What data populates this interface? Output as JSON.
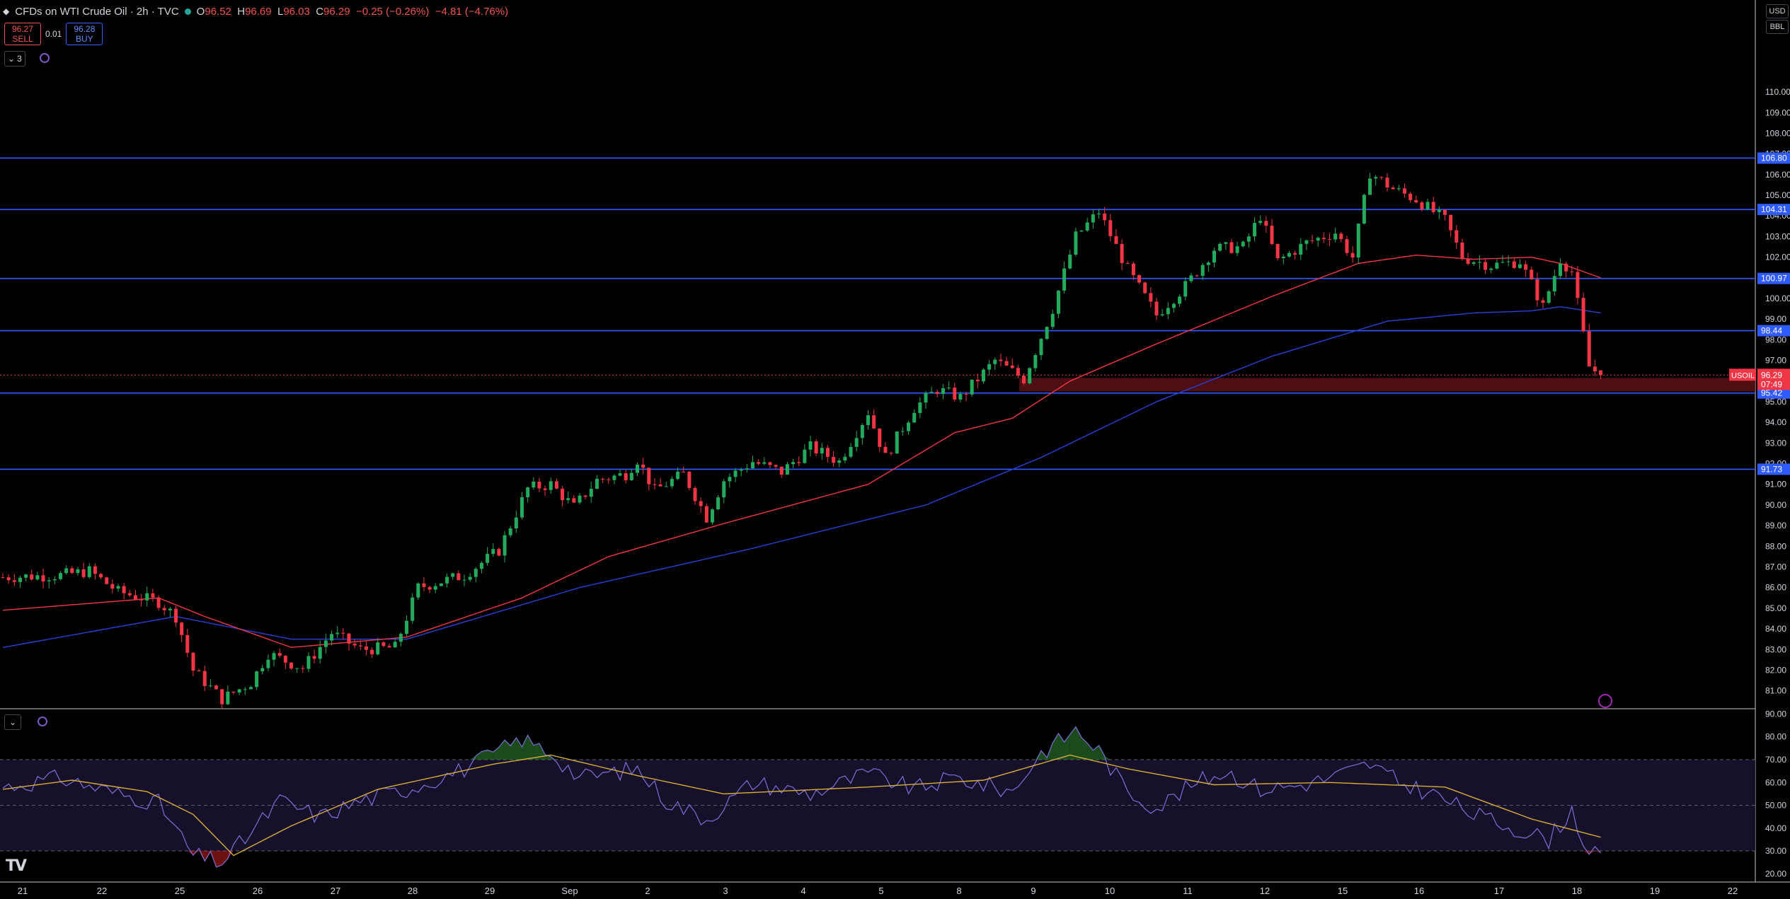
{
  "header": {
    "symbol_title": "CFDs on WTI Crude Oil · 2h · TVC",
    "ohlc": {
      "open_label": "O",
      "open": "96.52",
      "high_label": "H",
      "high": "96.69",
      "low_label": "L",
      "low": "96.03",
      "close_label": "C",
      "close": "96.29",
      "change": "−0.25 (−0.26%)",
      "change_2": "−4.81 (−4.76%)"
    }
  },
  "trade": {
    "sell_price": "96.27",
    "sell_label": "SELL",
    "spread": "0.01",
    "buy_price": "96.28",
    "buy_label": "BUY"
  },
  "indicators_toggle": "3",
  "units": {
    "currency": "USD",
    "unit": "BBL"
  },
  "colors": {
    "up": "#26a69a",
    "candle_up": "#22ab5c",
    "candle_down": "#f23645",
    "ema_fast": "#f23645",
    "ema_slow": "#2a40d8",
    "hline": "#2f5bff",
    "rsi": "#7e6fd6",
    "rsi_ma": "#d4af37",
    "zone": "#5a1218"
  },
  "price_axis": {
    "ticks": [
      "110.00",
      "109.00",
      "108.00",
      "107.00",
      "106.00",
      "105.00",
      "104.00",
      "103.00",
      "102.00",
      "101.00",
      "100.00",
      "99.00",
      "98.00",
      "97.00",
      "96.00",
      "95.00",
      "94.00",
      "93.00",
      "92.00",
      "91.00",
      "90.00",
      "89.00",
      "88.00",
      "87.00",
      "86.00",
      "85.00",
      "84.00",
      "83.00",
      "82.00",
      "81.00"
    ],
    "ymin": 80.2,
    "ymax": 112.4
  },
  "horizontal_levels": [
    "106.80",
    "104.31",
    "100.97",
    "98.44",
    "95.42",
    "91.73"
  ],
  "last_price": {
    "symbol": "USOIL",
    "price": "96.29",
    "countdown": "07:49"
  },
  "rsi_axis": {
    "ticks": [
      "90.00",
      "80.00",
      "70.00",
      "60.00",
      "50.00",
      "40.00",
      "30.00",
      "20.00"
    ],
    "upper": 70,
    "middle": 50,
    "lower": 30,
    "ymin": 17,
    "ymax": 92
  },
  "time_axis": [
    "21",
    "22",
    "25",
    "26",
    "27",
    "28",
    "29",
    "Sep",
    "2",
    "3",
    "4",
    "5",
    "8",
    "9",
    "10",
    "11",
    "12",
    "15",
    "16",
    "17",
    "18",
    "19",
    "22"
  ],
  "chart_data": {
    "type": "candlestick",
    "symbol": "USOIL",
    "interval": "2h",
    "candle_anchors": [
      {
        "bar": 0,
        "c": 86.5
      },
      {
        "bar": 10,
        "c": 86.6
      },
      {
        "bar": 15,
        "c": 86.8
      },
      {
        "bar": 20,
        "c": 85.8
      },
      {
        "bar": 27,
        "c": 85.3
      },
      {
        "bar": 30,
        "c": 84.6
      },
      {
        "bar": 33,
        "c": 82.0
      },
      {
        "bar": 38,
        "c": 80.6
      },
      {
        "bar": 43,
        "c": 81.4
      },
      {
        "bar": 46,
        "c": 82.8
      },
      {
        "bar": 52,
        "c": 82.1
      },
      {
        "bar": 57,
        "c": 83.8
      },
      {
        "bar": 62,
        "c": 83.0
      },
      {
        "bar": 68,
        "c": 83.1
      },
      {
        "bar": 72,
        "c": 86.0
      },
      {
        "bar": 80,
        "c": 86.6
      },
      {
        "bar": 86,
        "c": 87.8
      },
      {
        "bar": 91,
        "c": 90.8
      },
      {
        "bar": 95,
        "c": 91.0
      },
      {
        "bar": 99,
        "c": 89.9
      },
      {
        "bar": 103,
        "c": 91.2
      },
      {
        "bar": 108,
        "c": 91.5
      },
      {
        "bar": 110,
        "c": 92.2
      },
      {
        "bar": 113,
        "c": 90.7
      },
      {
        "bar": 118,
        "c": 91.5
      },
      {
        "bar": 122,
        "c": 89.4
      },
      {
        "bar": 125,
        "c": 91.2
      },
      {
        "bar": 130,
        "c": 92.1
      },
      {
        "bar": 135,
        "c": 91.6
      },
      {
        "bar": 140,
        "c": 92.8
      },
      {
        "bar": 145,
        "c": 92.1
      },
      {
        "bar": 150,
        "c": 94.5
      },
      {
        "bar": 153,
        "c": 92.3
      },
      {
        "bar": 158,
        "c": 94.7
      },
      {
        "bar": 162,
        "c": 95.6
      },
      {
        "bar": 166,
        "c": 95.2
      },
      {
        "bar": 172,
        "c": 97.0
      },
      {
        "bar": 177,
        "c": 96.1
      },
      {
        "bar": 182,
        "c": 99.5
      },
      {
        "bar": 186,
        "c": 103.0
      },
      {
        "bar": 190,
        "c": 104.2
      },
      {
        "bar": 195,
        "c": 101.4
      },
      {
        "bar": 200,
        "c": 99.2
      },
      {
        "bar": 205,
        "c": 100.6
      },
      {
        "bar": 210,
        "c": 102.4
      },
      {
        "bar": 215,
        "c": 102.5
      },
      {
        "bar": 218,
        "c": 104.0
      },
      {
        "bar": 221,
        "c": 101.8
      },
      {
        "bar": 226,
        "c": 102.7
      },
      {
        "bar": 231,
        "c": 103.2
      },
      {
        "bar": 234,
        "c": 102.0
      },
      {
        "bar": 237,
        "c": 106.1
      },
      {
        "bar": 241,
        "c": 105.3
      },
      {
        "bar": 245,
        "c": 104.8
      },
      {
        "bar": 250,
        "c": 103.8
      },
      {
        "bar": 253,
        "c": 102.0
      },
      {
        "bar": 258,
        "c": 101.6
      },
      {
        "bar": 263,
        "c": 101.8
      },
      {
        "bar": 267,
        "c": 99.6
      },
      {
        "bar": 270,
        "c": 101.9
      },
      {
        "bar": 272,
        "c": 101.3
      },
      {
        "bar": 275,
        "c": 96.7
      },
      {
        "bar": 277,
        "c": 96.29
      }
    ],
    "ema_fast_anchors": [
      {
        "bar": 0,
        "v": 84.9
      },
      {
        "bar": 27,
        "v": 85.5
      },
      {
        "bar": 35,
        "v": 84.6
      },
      {
        "bar": 50,
        "v": 83.1
      },
      {
        "bar": 70,
        "v": 83.6
      },
      {
        "bar": 90,
        "v": 85.5
      },
      {
        "bar": 105,
        "v": 87.5
      },
      {
        "bar": 125,
        "v": 89.1
      },
      {
        "bar": 150,
        "v": 91.0
      },
      {
        "bar": 165,
        "v": 93.5
      },
      {
        "bar": 175,
        "v": 94.2
      },
      {
        "bar": 185,
        "v": 96.0
      },
      {
        "bar": 200,
        "v": 97.8
      },
      {
        "bar": 220,
        "v": 100.1
      },
      {
        "bar": 235,
        "v": 101.7
      },
      {
        "bar": 245,
        "v": 102.1
      },
      {
        "bar": 255,
        "v": 101.9
      },
      {
        "bar": 265,
        "v": 102.0
      },
      {
        "bar": 270,
        "v": 101.7
      },
      {
        "bar": 277,
        "v": 101.0
      }
    ],
    "ema_slow_anchors": [
      {
        "bar": 0,
        "v": 83.1
      },
      {
        "bar": 30,
        "v": 84.6
      },
      {
        "bar": 50,
        "v": 83.5
      },
      {
        "bar": 70,
        "v": 83.5
      },
      {
        "bar": 100,
        "v": 86.0
      },
      {
        "bar": 130,
        "v": 87.9
      },
      {
        "bar": 160,
        "v": 90.0
      },
      {
        "bar": 180,
        "v": 92.3
      },
      {
        "bar": 200,
        "v": 95.0
      },
      {
        "bar": 220,
        "v": 97.2
      },
      {
        "bar": 240,
        "v": 98.9
      },
      {
        "bar": 255,
        "v": 99.3
      },
      {
        "bar": 265,
        "v": 99.4
      },
      {
        "bar": 270,
        "v": 99.6
      },
      {
        "bar": 277,
        "v": 99.3
      }
    ],
    "rsi_anchors": [
      {
        "bar": 0,
        "v": 58
      },
      {
        "bar": 10,
        "v": 62
      },
      {
        "bar": 20,
        "v": 55
      },
      {
        "bar": 27,
        "v": 51
      },
      {
        "bar": 33,
        "v": 28
      },
      {
        "bar": 38,
        "v": 25
      },
      {
        "bar": 43,
        "v": 38
      },
      {
        "bar": 48,
        "v": 52
      },
      {
        "bar": 55,
        "v": 45
      },
      {
        "bar": 62,
        "v": 52
      },
      {
        "bar": 70,
        "v": 57
      },
      {
        "bar": 80,
        "v": 66
      },
      {
        "bar": 90,
        "v": 79
      },
      {
        "bar": 95,
        "v": 73
      },
      {
        "bar": 100,
        "v": 62
      },
      {
        "bar": 110,
        "v": 66
      },
      {
        "bar": 115,
        "v": 52
      },
      {
        "bar": 122,
        "v": 44
      },
      {
        "bar": 130,
        "v": 60
      },
      {
        "bar": 140,
        "v": 55
      },
      {
        "bar": 150,
        "v": 64
      },
      {
        "bar": 158,
        "v": 57
      },
      {
        "bar": 165,
        "v": 62
      },
      {
        "bar": 175,
        "v": 56
      },
      {
        "bar": 180,
        "v": 73
      },
      {
        "bar": 186,
        "v": 83
      },
      {
        "bar": 190,
        "v": 74
      },
      {
        "bar": 195,
        "v": 56
      },
      {
        "bar": 200,
        "v": 49
      },
      {
        "bar": 207,
        "v": 60
      },
      {
        "bar": 212,
        "v": 65
      },
      {
        "bar": 218,
        "v": 57
      },
      {
        "bar": 225,
        "v": 59
      },
      {
        "bar": 230,
        "v": 62
      },
      {
        "bar": 237,
        "v": 68
      },
      {
        "bar": 242,
        "v": 60
      },
      {
        "bar": 248,
        "v": 55
      },
      {
        "bar": 255,
        "v": 46
      },
      {
        "bar": 262,
        "v": 40
      },
      {
        "bar": 268,
        "v": 35
      },
      {
        "bar": 272,
        "v": 48
      },
      {
        "bar": 275,
        "v": 28
      },
      {
        "bar": 277,
        "v": 28
      }
    ],
    "rsi_ma_anchors": [
      {
        "bar": 0,
        "v": 57
      },
      {
        "bar": 12,
        "v": 61
      },
      {
        "bar": 25,
        "v": 56
      },
      {
        "bar": 33,
        "v": 46
      },
      {
        "bar": 40,
        "v": 28
      },
      {
        "bar": 50,
        "v": 41
      },
      {
        "bar": 65,
        "v": 57
      },
      {
        "bar": 85,
        "v": 68
      },
      {
        "bar": 95,
        "v": 72
      },
      {
        "bar": 110,
        "v": 63
      },
      {
        "bar": 125,
        "v": 55
      },
      {
        "bar": 150,
        "v": 58
      },
      {
        "bar": 170,
        "v": 61
      },
      {
        "bar": 185,
        "v": 72
      },
      {
        "bar": 195,
        "v": 66
      },
      {
        "bar": 210,
        "v": 59
      },
      {
        "bar": 230,
        "v": 60
      },
      {
        "bar": 250,
        "v": 58
      },
      {
        "bar": 265,
        "v": 44
      },
      {
        "bar": 277,
        "v": 36
      }
    ]
  }
}
